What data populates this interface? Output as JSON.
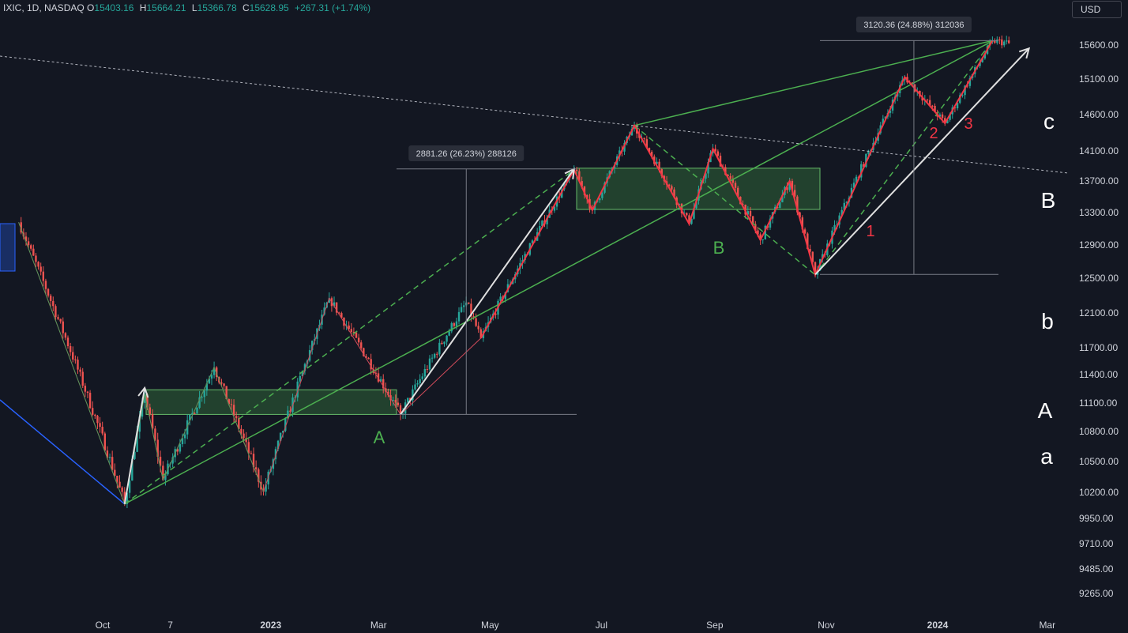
{
  "header": {
    "symbol": "IXIC, 1D, NASDAQ",
    "open_label": "O",
    "open_value": "15403.16",
    "high_label": "H",
    "high_value": "15664.21",
    "low_label": "L",
    "low_value": "15366.78",
    "close_label": "C",
    "close_value": "15628.95",
    "change": "+267.31 (+1.74%)",
    "currency": "USD"
  },
  "colors": {
    "background": "#131722",
    "up": "#26a69a",
    "down": "#ef5350",
    "green_line": "#4caf50",
    "red_line": "#f23645",
    "white_line": "#e0e0e0",
    "blue_line": "#2962ff"
  },
  "price_axis": {
    "ticks": [
      "15600.00",
      "15100.00",
      "14600.00",
      "14100.00",
      "13700.00",
      "13300.00",
      "12900.00",
      "12500.00",
      "12100.00",
      "11700.00",
      "11400.00",
      "11100.00",
      "10800.00",
      "10500.00",
      "10200.00",
      "9950.00",
      "9710.00",
      "9485.00",
      "9265.00"
    ]
  },
  "time_axis": {
    "ticks": [
      {
        "label": "Oct",
        "bold": false
      },
      {
        "label": "7",
        "bold": false
      },
      {
        "label": "2023",
        "bold": true
      },
      {
        "label": "Mar",
        "bold": false
      },
      {
        "label": "May",
        "bold": false
      },
      {
        "label": "Jul",
        "bold": false
      },
      {
        "label": "Sep",
        "bold": false
      },
      {
        "label": "Nov",
        "bold": false
      },
      {
        "label": "2024",
        "bold": true
      },
      {
        "label": "Mar",
        "bold": false
      }
    ]
  },
  "measurements": [
    {
      "text": "2881.26 (26.23%) 288126"
    },
    {
      "text": "3120.36 (24.88%) 312036"
    }
  ],
  "wave_labels": {
    "green": [
      "A",
      "B"
    ],
    "red": [
      "1",
      "2",
      "3"
    ],
    "right_side": [
      "c",
      "B",
      "b",
      "A",
      "a"
    ]
  },
  "chart_data": {
    "type": "candlestick",
    "symbol": "IXIC",
    "interval": "1D",
    "price_axis_labels": [
      15600,
      15100,
      14600,
      14100,
      13700,
      13300,
      12900,
      12500,
      12100,
      11700,
      11400,
      11100,
      10800,
      10500,
      10200,
      9950,
      9710,
      9485,
      9265
    ],
    "swing_points": [
      {
        "date": "2022-08-16",
        "price": 13180
      },
      {
        "date": "2022-10-13",
        "price": 10088
      },
      {
        "date": "2022-10-24",
        "price": 11190
      },
      {
        "date": "2022-11-03",
        "price": 10320
      },
      {
        "date": "2022-12-01",
        "price": 11480
      },
      {
        "date": "2022-12-28",
        "price": 10207
      },
      {
        "date": "2023-02-02",
        "price": 12270
      },
      {
        "date": "2023-03-13",
        "price": 10980
      },
      {
        "date": "2023-04-18",
        "price": 12220
      },
      {
        "date": "2023-04-26",
        "price": 11810
      },
      {
        "date": "2023-06-16",
        "price": 13850
      },
      {
        "date": "2023-06-26",
        "price": 13330
      },
      {
        "date": "2023-07-19",
        "price": 14450
      },
      {
        "date": "2023-08-18",
        "price": 13160
      },
      {
        "date": "2023-08-31",
        "price": 14130
      },
      {
        "date": "2023-09-26",
        "price": 12960
      },
      {
        "date": "2023-10-12",
        "price": 13700
      },
      {
        "date": "2023-10-26",
        "price": 12540
      },
      {
        "date": "2023-12-14",
        "price": 15130
      },
      {
        "date": "2024-01-05",
        "price": 14480
      },
      {
        "date": "2024-01-31",
        "price": 15665
      },
      {
        "date": "2024-02-09",
        "price": 15629
      }
    ],
    "measures": [
      {
        "label": "2881.26 (26.23%) 288126",
        "from": 10980,
        "to": 13860
      },
      {
        "label": "3120.36 (24.88%) 312036",
        "from": 12545,
        "to": 15665
      }
    ],
    "zones": [
      {
        "price_low": 10980,
        "price_high": 11240
      },
      {
        "price_low": 13340,
        "price_high": 13870
      }
    ],
    "last_ohlc": {
      "open": 15403.16,
      "high": 15664.21,
      "low": 15366.78,
      "close": 15628.95,
      "change": 267.31,
      "change_pct": 1.74
    }
  }
}
